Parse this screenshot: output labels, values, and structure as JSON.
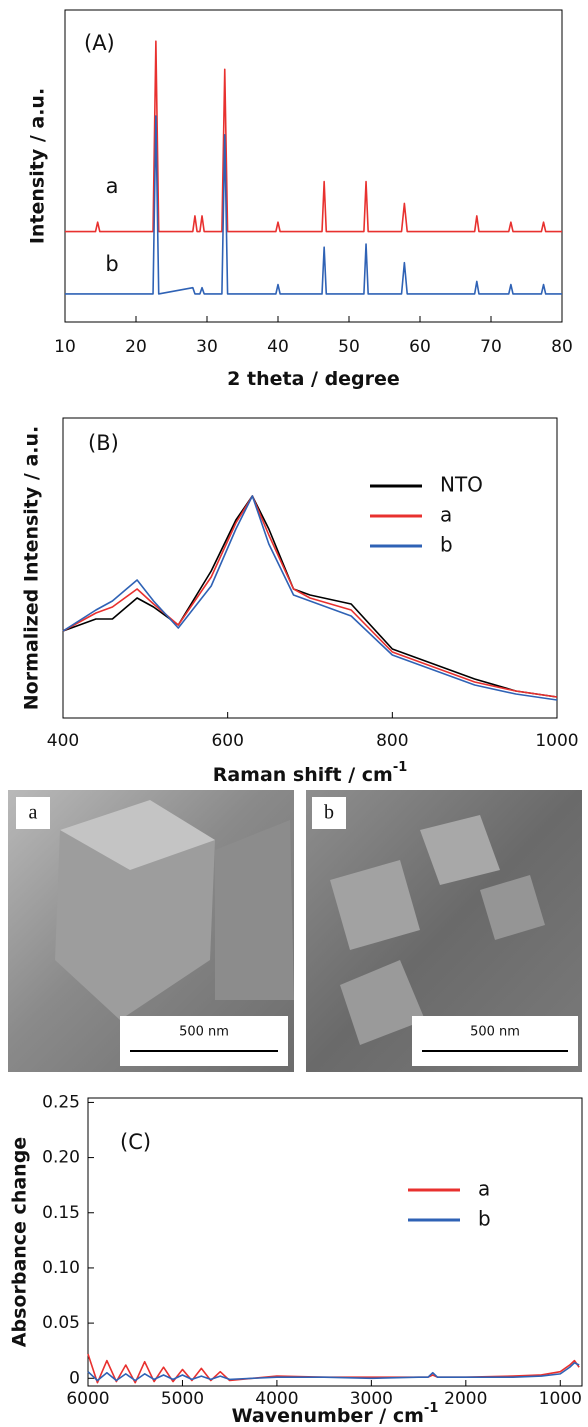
{
  "chart_data": [
    {
      "type": "line",
      "panel_label": "(A)",
      "x_label": "2 theta / degree",
      "y_label": "Intensity / a.u.",
      "xlim": [
        10,
        80
      ],
      "xticks": [
        10,
        20,
        30,
        40,
        50,
        60,
        70,
        80
      ],
      "ylim": [
        0,
        100
      ],
      "x": [
        10,
        14.3,
        14.6,
        14.9,
        22.4,
        22.8,
        23.2,
        28.0,
        28.3,
        28.6,
        29.0,
        29.3,
        29.6,
        32.1,
        32.5,
        32.9,
        39.7,
        40.0,
        40.3,
        46.2,
        46.5,
        46.8,
        52.1,
        52.4,
        52.7,
        57.4,
        57.8,
        58.2,
        67.7,
        68.0,
        68.3,
        72.5,
        72.8,
        73.1,
        77.1,
        77.4,
        77.7,
        80
      ],
      "series": [
        {
          "name": "a",
          "color": "#e8312f",
          "values": [
            29,
            29,
            32,
            29,
            29,
            90,
            29,
            29,
            34,
            29,
            29,
            34,
            29,
            29,
            81,
            29,
            29,
            32,
            29,
            29,
            45,
            29,
            29,
            45,
            29,
            29,
            38,
            29,
            29,
            34,
            29,
            29,
            32,
            29,
            29,
            32,
            29,
            29
          ]
        },
        {
          "name": "b",
          "color": "#2f62b5",
          "values": [
            9,
            9,
            9,
            9,
            9,
            66,
            9,
            11,
            9,
            9,
            9,
            11,
            9,
            9,
            60,
            9,
            9,
            12,
            9,
            9,
            24,
            9,
            9,
            25,
            9,
            9,
            19,
            9,
            9,
            13,
            9,
            9,
            12,
            9,
            9,
            12,
            9,
            9
          ]
        }
      ]
    },
    {
      "type": "line",
      "panel_label": "(B)",
      "x_label": "Raman shift / cm",
      "x_label_sup": "-1",
      "y_label": "Normalized Intensity / a.u.",
      "xlim": [
        400,
        1000
      ],
      "xticks": [
        400,
        600,
        800,
        1000
      ],
      "ylim": [
        0,
        1
      ],
      "legend": "upper right",
      "x": [
        400,
        440,
        460,
        490,
        510,
        540,
        580,
        610,
        630,
        650,
        680,
        700,
        750,
        800,
        850,
        900,
        950,
        1000
      ],
      "series": [
        {
          "name": "NTO",
          "color": "#000000",
          "values": [
            0.29,
            0.33,
            0.33,
            0.4,
            0.37,
            0.31,
            0.49,
            0.66,
            0.74,
            0.63,
            0.43,
            0.41,
            0.38,
            0.23,
            0.18,
            0.13,
            0.09,
            0.07
          ]
        },
        {
          "name": "a",
          "color": "#e8312f",
          "values": [
            0.29,
            0.35,
            0.37,
            0.43,
            0.38,
            0.31,
            0.47,
            0.65,
            0.74,
            0.61,
            0.43,
            0.4,
            0.36,
            0.22,
            0.17,
            0.12,
            0.09,
            0.07
          ]
        },
        {
          "name": "b",
          "color": "#2f62b5",
          "values": [
            0.29,
            0.36,
            0.39,
            0.46,
            0.39,
            0.3,
            0.44,
            0.63,
            0.74,
            0.58,
            0.41,
            0.39,
            0.34,
            0.21,
            0.16,
            0.11,
            0.08,
            0.06
          ]
        }
      ]
    },
    {
      "type": "line",
      "panel_label": "(C)",
      "x_label": "Wavenumber / cm",
      "x_label_sup": "-1",
      "y_label": "Absorbance change",
      "xlim": [
        6000,
        770
      ],
      "xticks": [
        6000,
        5000,
        4000,
        3000,
        2000,
        1000
      ],
      "ylim": [
        -0.007,
        0.254
      ],
      "yticks": [
        0,
        0.05,
        {
          "value": 0.1,
          "label": "0.10"
        },
        0.15,
        {
          "value": 0.2,
          "label": "0.20"
        },
        0.25
      ],
      "legend": "upper right",
      "x": [
        6000,
        5900,
        5800,
        5700,
        5600,
        5500,
        5400,
        5300,
        5200,
        5100,
        5000,
        4900,
        4800,
        4700,
        4600,
        4500,
        4000,
        3500,
        3000,
        2500,
        2400,
        2350,
        2300,
        2000,
        1500,
        1200,
        1000,
        900,
        850,
        800
      ],
      "series": [
        {
          "name": "a",
          "color": "#e8312f",
          "values": [
            0.022,
            -0.004,
            0.016,
            -0.003,
            0.012,
            -0.004,
            0.015,
            -0.003,
            0.01,
            -0.003,
            0.008,
            -0.002,
            0.009,
            -0.002,
            0.006,
            -0.002,
            0.002,
            0.001,
            0.001,
            0.001,
            0.001,
            0.003,
            0.001,
            0.001,
            0.002,
            0.003,
            0.006,
            0.012,
            0.016,
            0.01
          ]
        },
        {
          "name": "b",
          "color": "#2f62b5",
          "values": [
            0.006,
            -0.002,
            0.005,
            -0.002,
            0.004,
            -0.002,
            0.004,
            -0.001,
            0.003,
            -0.001,
            0.003,
            -0.001,
            0.002,
            -0.001,
            0.002,
            -0.001,
            0.001,
            0.001,
            0.0,
            0.001,
            0.001,
            0.005,
            0.001,
            0.001,
            0.001,
            0.002,
            0.004,
            0.01,
            0.014,
            0.012
          ]
        }
      ]
    }
  ],
  "images": [
    {
      "label": "a",
      "scale_bar": "500 nm"
    },
    {
      "label": "b",
      "scale_bar": "500 nm"
    }
  ]
}
